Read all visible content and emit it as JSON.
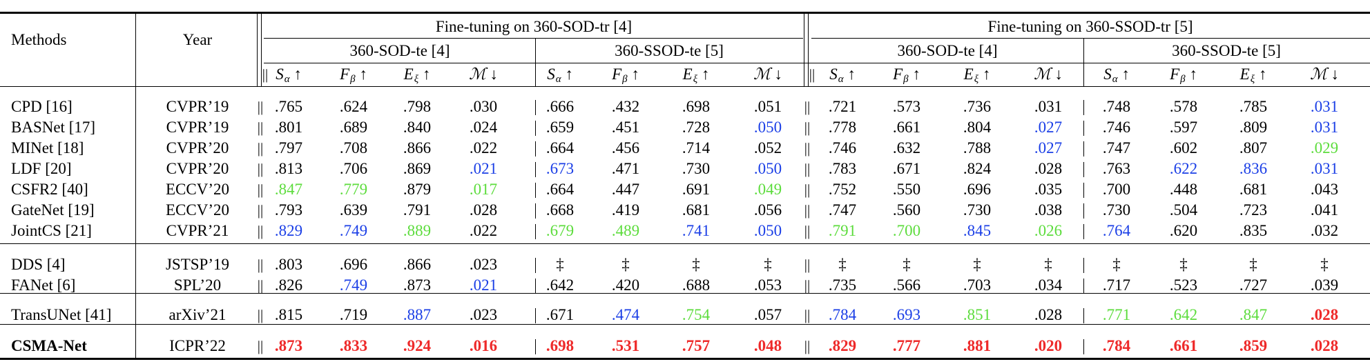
{
  "groups": [
    {
      "label": "Fine-tuning on 360-SOD-tr [4]",
      "sub": [
        "360-SOD-te [4]",
        "360-SSOD-te [5]"
      ]
    },
    {
      "label": "Fine-tuning on 360-SSOD-tr [5]",
      "sub": [
        "360-SOD-te [4]",
        "360-SSOD-te [5]"
      ]
    }
  ],
  "col_headers": {
    "methods": "Methods",
    "year": "Year"
  },
  "metrics": [
    {
      "sym": "S",
      "sub": "α",
      "arrow": "↑"
    },
    {
      "sym": "F",
      "sub": "β",
      "arrow": "↑"
    },
    {
      "sym": "E",
      "sub": "ξ",
      "arrow": "↑"
    },
    {
      "sym": "ℳ",
      "sub": "",
      "arrow": "↓"
    }
  ],
  "separator": "||",
  "colors": {
    "r": "#ee2a2a",
    "g": "#5cdc3c",
    "b": "#1a3ee6",
    "k": "#000000"
  },
  "sections": [
    [
      {
        "method": "CPD [16]",
        "year": "CVPR’19",
        "values": [
          ".765",
          ".624",
          ".798",
          ".030",
          ".666",
          ".432",
          ".698",
          ".051",
          ".721",
          ".573",
          ".736",
          ".031",
          ".748",
          ".578",
          ".785",
          ".031"
        ],
        "colors": [
          "k",
          "k",
          "k",
          "k",
          "k",
          "k",
          "k",
          "k",
          "k",
          "k",
          "k",
          "k",
          "k",
          "k",
          "k",
          "b"
        ]
      },
      {
        "method": "BASNet [17]",
        "year": "CVPR’19",
        "values": [
          ".801",
          ".689",
          ".840",
          ".024",
          ".659",
          ".451",
          ".728",
          ".050",
          ".778",
          ".661",
          ".804",
          ".027",
          ".746",
          ".597",
          ".809",
          ".031"
        ],
        "colors": [
          "k",
          "k",
          "k",
          "k",
          "k",
          "k",
          "k",
          "b",
          "k",
          "k",
          "k",
          "b",
          "k",
          "k",
          "k",
          "b"
        ]
      },
      {
        "method": "MINet [18]",
        "year": "CVPR’20",
        "values": [
          ".797",
          ".708",
          ".866",
          ".022",
          ".664",
          ".456",
          ".714",
          ".052",
          ".746",
          ".632",
          ".788",
          ".027",
          ".747",
          ".602",
          ".807",
          ".029"
        ],
        "colors": [
          "k",
          "k",
          "k",
          "k",
          "k",
          "k",
          "k",
          "k",
          "k",
          "k",
          "k",
          "b",
          "k",
          "k",
          "k",
          "g"
        ]
      },
      {
        "method": "LDF [20]",
        "year": "CVPR’20",
        "values": [
          ".813",
          ".706",
          ".869",
          ".021",
          ".673",
          ".471",
          ".730",
          ".050",
          ".783",
          ".671",
          ".824",
          ".028",
          ".763",
          ".622",
          ".836",
          ".031"
        ],
        "colors": [
          "k",
          "k",
          "k",
          "b",
          "b",
          "k",
          "k",
          "b",
          "k",
          "k",
          "k",
          "k",
          "k",
          "b",
          "b",
          "b"
        ]
      },
      {
        "method": "CSFR2 [40]",
        "year": "ECCV’20",
        "values": [
          ".847",
          ".779",
          ".879",
          ".017",
          ".664",
          ".447",
          ".691",
          ".049",
          ".752",
          ".550",
          ".696",
          ".035",
          ".700",
          ".448",
          ".681",
          ".043"
        ],
        "colors": [
          "g",
          "g",
          "k",
          "g",
          "k",
          "k",
          "k",
          "g",
          "k",
          "k",
          "k",
          "k",
          "k",
          "k",
          "k",
          "k"
        ]
      },
      {
        "method": "GateNet [19]",
        "year": "ECCV’20",
        "values": [
          ".793",
          ".639",
          ".791",
          ".028",
          ".668",
          ".419",
          ".681",
          ".056",
          ".747",
          ".560",
          ".730",
          ".038",
          ".730",
          ".504",
          ".723",
          ".041"
        ],
        "colors": [
          "k",
          "k",
          "k",
          "k",
          "k",
          "k",
          "k",
          "k",
          "k",
          "k",
          "k",
          "k",
          "k",
          "k",
          "k",
          "k"
        ]
      },
      {
        "method": "JointCS [21]",
        "year": "CVPR’21",
        "values": [
          ".829",
          ".749",
          ".889",
          ".022",
          ".679",
          ".489",
          ".741",
          ".050",
          ".791",
          ".700",
          ".845",
          ".026",
          ".764",
          ".620",
          ".835",
          ".032"
        ],
        "colors": [
          "b",
          "b",
          "g",
          "k",
          "g",
          "g",
          "b",
          "b",
          "g",
          "g",
          "b",
          "g",
          "b",
          "k",
          "k",
          "k"
        ]
      }
    ],
    [
      {
        "method": "DDS [4]",
        "year": "JSTSP’19",
        "values": [
          ".803",
          ".696",
          ".866",
          ".023",
          "‡",
          "‡",
          "‡",
          "‡",
          "‡",
          "‡",
          "‡",
          "‡",
          "‡",
          "‡",
          "‡",
          "‡"
        ],
        "colors": [
          "k",
          "k",
          "k",
          "k",
          "k",
          "k",
          "k",
          "k",
          "k",
          "k",
          "k",
          "k",
          "k",
          "k",
          "k",
          "k"
        ]
      },
      {
        "method": "FANet [6]",
        "year": "SPL’20",
        "values": [
          ".826",
          ".749",
          ".873",
          ".021",
          ".642",
          ".420",
          ".688",
          ".053",
          ".735",
          ".566",
          ".703",
          ".034",
          ".717",
          ".523",
          ".727",
          ".039"
        ],
        "colors": [
          "k",
          "b",
          "k",
          "b",
          "k",
          "k",
          "k",
          "k",
          "k",
          "k",
          "k",
          "k",
          "k",
          "k",
          "k",
          "k"
        ]
      }
    ],
    [
      {
        "method": "TransUNet [41]",
        "year": "arXiv’21",
        "values": [
          ".815",
          ".719",
          ".887",
          ".023",
          ".671",
          ".474",
          ".754",
          ".057",
          ".784",
          ".693",
          ".851",
          ".028",
          ".771",
          ".642",
          ".847",
          ".028"
        ],
        "colors": [
          "k",
          "k",
          "b",
          "k",
          "k",
          "b",
          "g",
          "k",
          "b",
          "b",
          "g",
          "k",
          "g",
          "g",
          "g",
          "r"
        ],
        "bold_idx": [
          15
        ]
      }
    ],
    [
      {
        "method": "CSMA-Net",
        "year": "ICPR’22",
        "values": [
          ".873",
          ".833",
          ".924",
          ".016",
          ".698",
          ".531",
          ".757",
          ".048",
          ".829",
          ".777",
          ".881",
          ".020",
          ".784",
          ".661",
          ".859",
          ".028"
        ],
        "colors": [
          "r",
          "r",
          "r",
          "r",
          "r",
          "r",
          "r",
          "r",
          "r",
          "r",
          "r",
          "r",
          "r",
          "r",
          "r",
          "r"
        ],
        "bold_all": true
      }
    ]
  ]
}
